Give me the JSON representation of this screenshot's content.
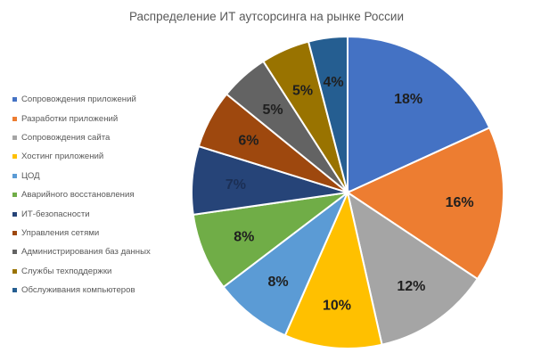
{
  "chart_data": {
    "type": "pie",
    "title": "Распределение ИТ аутсорсинга на рынке России",
    "legend_position": "left",
    "slices": [
      {
        "label": "Сопровождения приложений",
        "value": 18,
        "display": "18%",
        "color": "#4472C4",
        "text_color": "#1f1f1f"
      },
      {
        "label": "Разработки приложений",
        "value": 16,
        "display": "16%",
        "color": "#ED7D31",
        "text_color": "#1f1f1f"
      },
      {
        "label": "Сопровождения сайта",
        "value": 12,
        "display": "12%",
        "color": "#A5A5A5",
        "text_color": "#1f1f1f"
      },
      {
        "label": "Хостинг приложений",
        "value": 10,
        "display": "10%",
        "color": "#FFC000",
        "text_color": "#1f1f1f"
      },
      {
        "label": "ЦОД",
        "value": 8,
        "display": "8%",
        "color": "#5B9BD5",
        "text_color": "#1f1f1f"
      },
      {
        "label": "Аварийного восстановления",
        "value": 8,
        "display": "8%",
        "color": "#70AD47",
        "text_color": "#1f1f1f"
      },
      {
        "label": "ИТ-безопасности",
        "value": 7,
        "display": "7%",
        "color": "#264478",
        "text_color": "#1b2f55"
      },
      {
        "label": "Управления сетями",
        "value": 6,
        "display": "6%",
        "color": "#9E480E",
        "text_color": "#1f1f1f"
      },
      {
        "label": "Администрирования баз данных",
        "value": 5,
        "display": "5%",
        "color": "#636363",
        "text_color": "#1f1f1f"
      },
      {
        "label": "Службы техподдержки",
        "value": 5,
        "display": "5%",
        "color": "#997300",
        "text_color": "#1f1f1f"
      },
      {
        "label": "Обслуживания компьютеров",
        "value": 4,
        "display": "4%",
        "color": "#255E91",
        "text_color": "#1f1f1f"
      }
    ]
  }
}
